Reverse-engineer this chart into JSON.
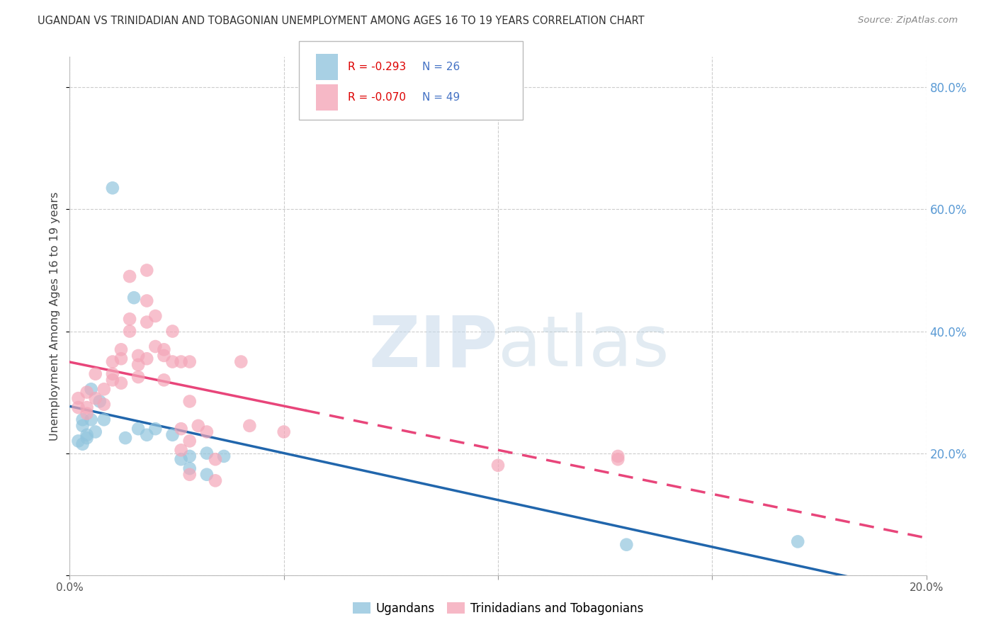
{
  "title": "UGANDAN VS TRINIDADIAN AND TOBAGONIAN UNEMPLOYMENT AMONG AGES 16 TO 19 YEARS CORRELATION CHART",
  "source": "Source: ZipAtlas.com",
  "ylabel": "Unemployment Among Ages 16 to 19 years",
  "xlim": [
    0.0,
    0.2
  ],
  "ylim": [
    0.0,
    0.85
  ],
  "yticks": [
    0.0,
    0.2,
    0.4,
    0.6,
    0.8
  ],
  "ytick_labels": [
    "",
    "20.0%",
    "40.0%",
    "60.0%",
    "80.0%"
  ],
  "xticks": [
    0.0,
    0.05,
    0.1,
    0.15,
    0.2
  ],
  "xtick_labels": [
    "0.0%",
    "",
    "",
    "",
    "20.0%"
  ],
  "legend_r_blue": "R = -0.293",
  "legend_n_blue": "N = 26",
  "legend_r_pink": "R = -0.070",
  "legend_n_pink": "N = 49",
  "blue_color": "#92c5de",
  "pink_color": "#f4a6b8",
  "blue_line_color": "#2166ac",
  "pink_line_color": "#e8457a",
  "ugandan_points": [
    [
      0.01,
      0.635
    ],
    [
      0.015,
      0.455
    ],
    [
      0.005,
      0.305
    ],
    [
      0.007,
      0.285
    ],
    [
      0.003,
      0.255
    ],
    [
      0.005,
      0.255
    ],
    [
      0.008,
      0.255
    ],
    [
      0.006,
      0.235
    ],
    [
      0.004,
      0.225
    ],
    [
      0.003,
      0.215
    ],
    [
      0.003,
      0.245
    ],
    [
      0.004,
      0.23
    ],
    [
      0.002,
      0.22
    ],
    [
      0.013,
      0.225
    ],
    [
      0.016,
      0.24
    ],
    [
      0.018,
      0.23
    ],
    [
      0.02,
      0.24
    ],
    [
      0.024,
      0.23
    ],
    [
      0.026,
      0.19
    ],
    [
      0.028,
      0.195
    ],
    [
      0.028,
      0.175
    ],
    [
      0.032,
      0.2
    ],
    [
      0.032,
      0.165
    ],
    [
      0.036,
      0.195
    ],
    [
      0.13,
      0.05
    ],
    [
      0.17,
      0.055
    ]
  ],
  "trinidadian_points": [
    [
      0.002,
      0.29
    ],
    [
      0.004,
      0.3
    ],
    [
      0.002,
      0.275
    ],
    [
      0.004,
      0.275
    ],
    [
      0.004,
      0.265
    ],
    [
      0.006,
      0.29
    ],
    [
      0.006,
      0.33
    ],
    [
      0.008,
      0.28
    ],
    [
      0.008,
      0.305
    ],
    [
      0.01,
      0.35
    ],
    [
      0.01,
      0.33
    ],
    [
      0.01,
      0.32
    ],
    [
      0.012,
      0.37
    ],
    [
      0.012,
      0.315
    ],
    [
      0.012,
      0.355
    ],
    [
      0.014,
      0.4
    ],
    [
      0.014,
      0.42
    ],
    [
      0.014,
      0.49
    ],
    [
      0.016,
      0.36
    ],
    [
      0.016,
      0.345
    ],
    [
      0.016,
      0.325
    ],
    [
      0.018,
      0.5
    ],
    [
      0.018,
      0.45
    ],
    [
      0.018,
      0.415
    ],
    [
      0.018,
      0.355
    ],
    [
      0.02,
      0.425
    ],
    [
      0.02,
      0.375
    ],
    [
      0.022,
      0.32
    ],
    [
      0.022,
      0.36
    ],
    [
      0.022,
      0.37
    ],
    [
      0.024,
      0.4
    ],
    [
      0.024,
      0.35
    ],
    [
      0.026,
      0.35
    ],
    [
      0.026,
      0.24
    ],
    [
      0.026,
      0.205
    ],
    [
      0.028,
      0.35
    ],
    [
      0.028,
      0.285
    ],
    [
      0.028,
      0.22
    ],
    [
      0.028,
      0.165
    ],
    [
      0.03,
      0.245
    ],
    [
      0.032,
      0.235
    ],
    [
      0.034,
      0.19
    ],
    [
      0.034,
      0.155
    ],
    [
      0.04,
      0.35
    ],
    [
      0.042,
      0.245
    ],
    [
      0.05,
      0.235
    ],
    [
      0.1,
      0.18
    ],
    [
      0.128,
      0.19
    ],
    [
      0.128,
      0.195
    ]
  ]
}
